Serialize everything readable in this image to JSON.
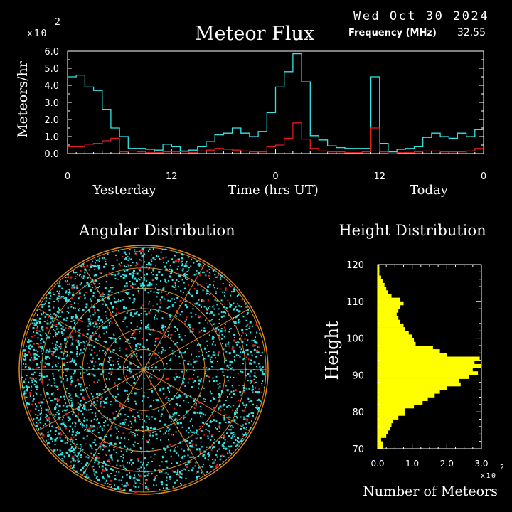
{
  "colors": {
    "background": "#000000",
    "text": "#ffffff",
    "axis": "#ffffff",
    "flux_total": "#33e6e6",
    "flux_radiant": "#e01c1c",
    "radar_grid": "#e08a20",
    "radar_axis": "#d8c020",
    "radar_point_a": "#33e6e6",
    "radar_point_b": "#e01c1c",
    "height_bar": "#ffff00"
  },
  "header": {
    "date": "Wed Oct 30 2024",
    "frequency_label": "Frequency (MHz)",
    "frequency_value": "32.55"
  },
  "flux_panel": {
    "title": "Meteor Flux",
    "ylabel": "Meteors/hr",
    "xlabel": "Time (hrs UT)",
    "scale_multiplier": "x10",
    "scale_exponent": "2",
    "day_labels": [
      "Yesterday",
      "Today"
    ],
    "yticks": [
      "0.0",
      "1.0",
      "2.0",
      "3.0",
      "4.0",
      "5.0",
      "6.0"
    ],
    "xticks": [
      "0",
      "12",
      "0",
      "12",
      "0"
    ]
  },
  "angular_panel": {
    "title": "Angular Distribution",
    "rings": 6,
    "radial_lines_deg": [
      0,
      30,
      60,
      90,
      120,
      150
    ],
    "point_counts": {
      "cyan": 2600,
      "red": 420
    }
  },
  "height_panel": {
    "title": "Height Distribution",
    "ylabel": "Height",
    "xlabel": "Number of Meteors",
    "scale_multiplier": "x10",
    "scale_exponent": "2",
    "yticks": [
      "70",
      "80",
      "90",
      "100",
      "110",
      "120"
    ],
    "xticks": [
      "0.0",
      "1.0",
      "2.0",
      "3.0"
    ]
  },
  "chart_data": [
    {
      "type": "line",
      "title": "Meteor Flux",
      "xlabel": "Time (hrs UT)",
      "ylabel": "Meteors/hr",
      "y_scale_factor": 100,
      "ylim": [
        0,
        6
      ],
      "xlim": [
        0,
        48
      ],
      "bin_hours": 1,
      "series": [
        {
          "color": "#33e6e6",
          "values": [
            4.5,
            4.6,
            3.9,
            3.7,
            2.6,
            1.5,
            1.0,
            0.3,
            0.3,
            0.25,
            0.2,
            0.55,
            0.4,
            0.15,
            0.2,
            0.4,
            0.7,
            1.1,
            1.2,
            1.5,
            1.2,
            1.0,
            1.3,
            2.4,
            3.9,
            4.8,
            5.85,
            4.2,
            1.05,
            0.8,
            0.45,
            0.35,
            0.3,
            0.3,
            0.3,
            4.5,
            0.6,
            0.1,
            0.25,
            0.3,
            0.4,
            0.95,
            1.2,
            1.0,
            0.9,
            1.2,
            1.0,
            1.4
          ]
        },
        {
          "color": "#e01c1c",
          "values": [
            0.4,
            0.4,
            0.55,
            0.6,
            0.75,
            0.9,
            0.1,
            0.15,
            0.1,
            0.05,
            0.05,
            0.1,
            0.1,
            0.1,
            0.05,
            0.15,
            0.2,
            0.3,
            0.25,
            0.2,
            0.15,
            0.1,
            0.1,
            0.4,
            0.5,
            0.9,
            1.8,
            0.85,
            0.3,
            0.15,
            0.1,
            0.1,
            0.05,
            0.05,
            0.1,
            1.5,
            0.1,
            0.0,
            0.05,
            0.05,
            0.1,
            0.15,
            0.15,
            0.1,
            0.1,
            0.1,
            0.15,
            0.3
          ]
        }
      ]
    },
    {
      "type": "bar",
      "orientation": "horizontal",
      "title": "Height Distribution",
      "xlabel": "Number of Meteors",
      "ylabel": "Height",
      "x_scale_factor": 100,
      "xlim": [
        0,
        3
      ],
      "ylim": [
        70,
        120
      ],
      "bin_km": 1,
      "heights_start": 70,
      "values": [
        0.15,
        0.15,
        0.1,
        0.25,
        0.3,
        0.35,
        0.4,
        0.45,
        0.6,
        0.8,
        0.8,
        1.05,
        1.3,
        1.45,
        1.65,
        1.8,
        2.0,
        2.4,
        2.35,
        2.65,
        2.9,
        2.75,
        3.0,
        2.8,
        2.95,
        2.0,
        1.8,
        1.6,
        1.1,
        1.05,
        1.0,
        0.9,
        0.8,
        0.75,
        0.65,
        0.6,
        0.55,
        0.6,
        0.65,
        0.75,
        0.65,
        0.4,
        0.3,
        0.25,
        0.2,
        0.15,
        0.1,
        0.05,
        0.05,
        0.05
      ]
    }
  ]
}
